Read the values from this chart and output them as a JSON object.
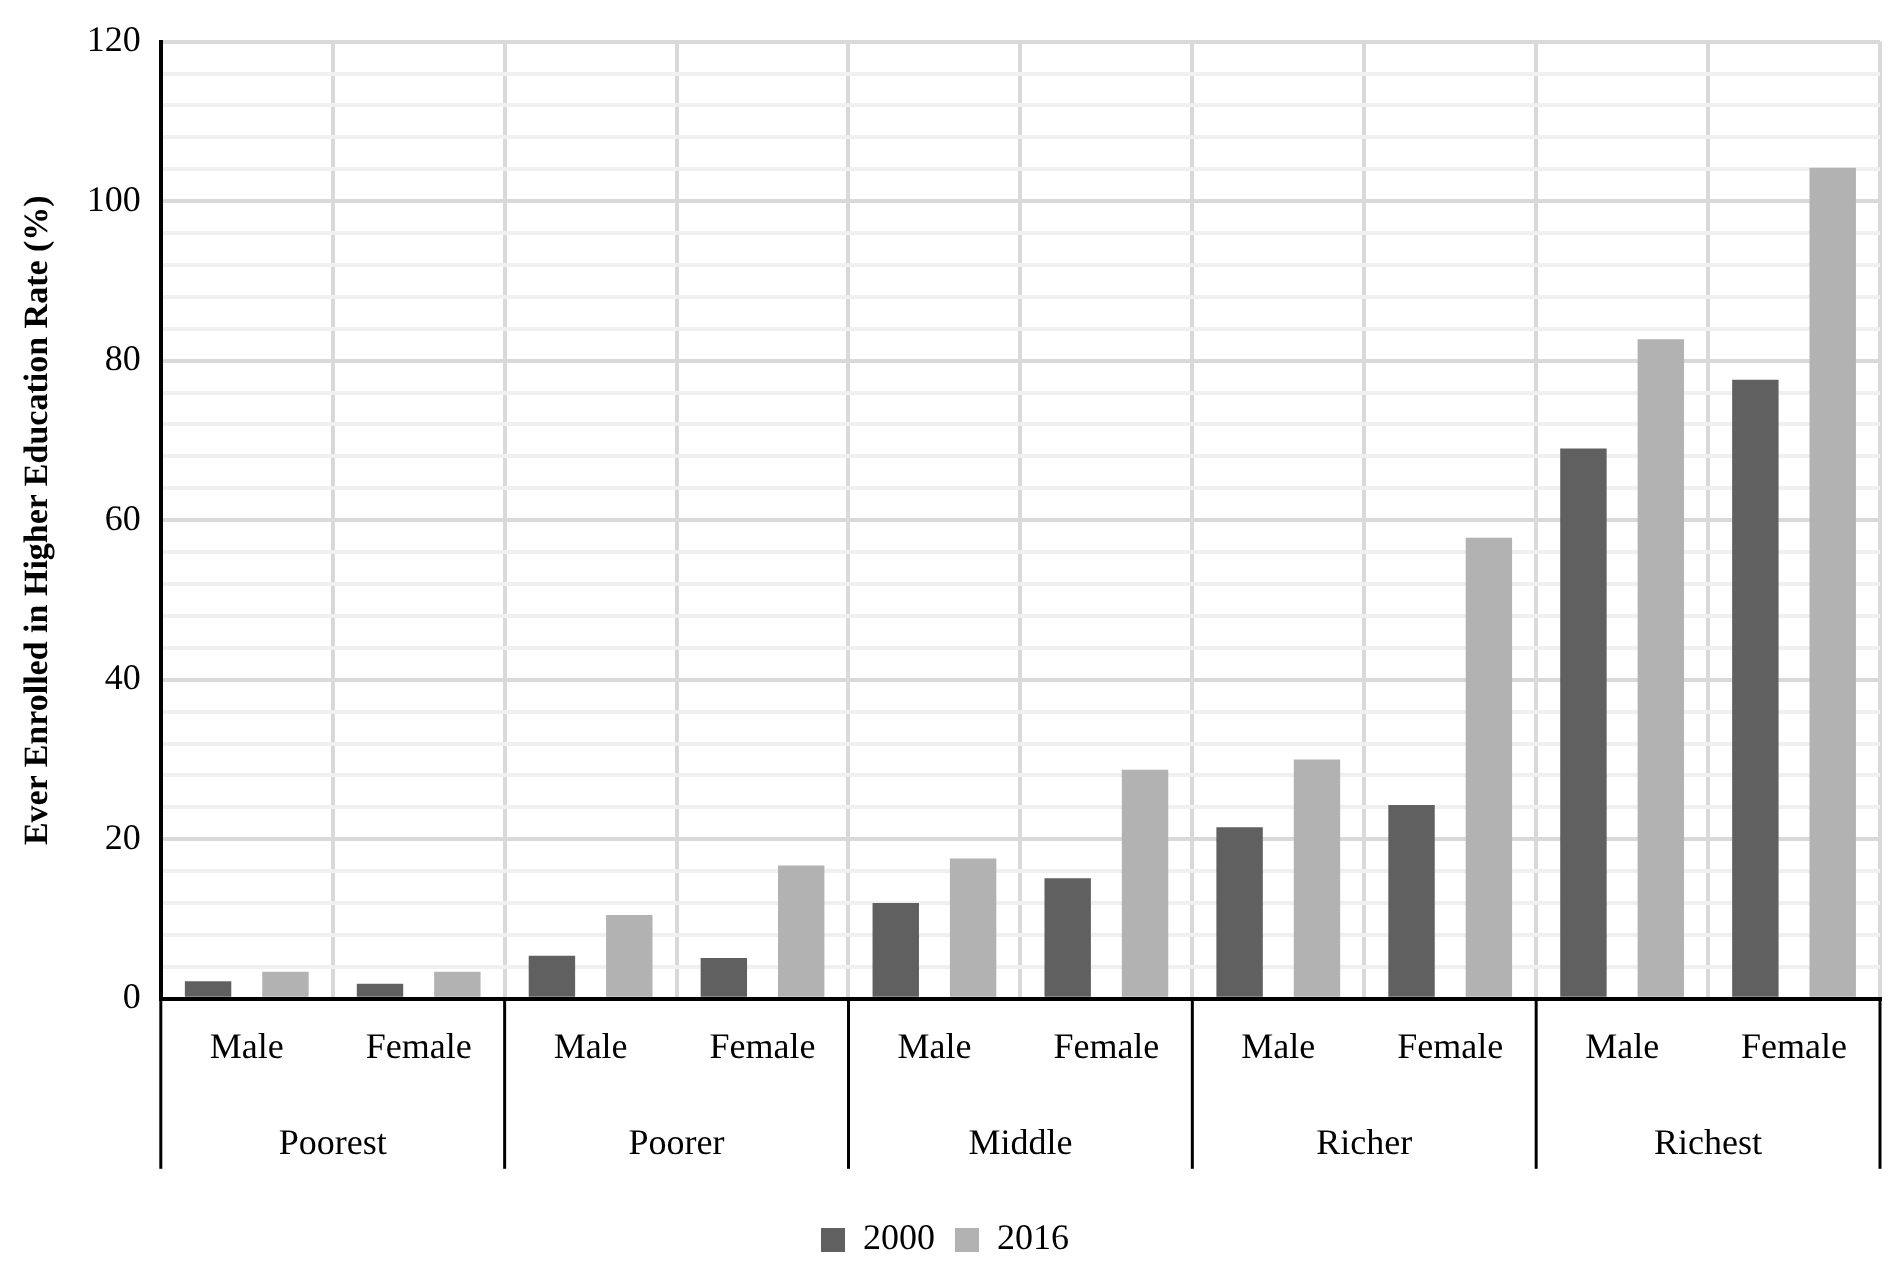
{
  "chart_data": {
    "type": "bar",
    "ylabel": "Ever Enrolled in Higher Education Rate (%)",
    "categories": [
      "Male",
      "Female",
      "Male",
      "Female",
      "Male",
      "Female",
      "Male",
      "Female",
      "Male",
      "Female"
    ],
    "annotations": [
      "Poorest",
      "Poorer",
      "Middle",
      "Richer",
      "Richest"
    ],
    "series": [
      {
        "name": "2000",
        "color": "#606060",
        "values": [
          2.2,
          1.9,
          5.4,
          5.1,
          12,
          15.1,
          21.5,
          24.3,
          69,
          77.6
        ]
      },
      {
        "name": "2016",
        "color": "#b2b2b2",
        "values": [
          3.4,
          3.4,
          10.5,
          16.7,
          17.6,
          28.7,
          30,
          57.8,
          82.7,
          104.2
        ]
      }
    ],
    "ylim": [
      0,
      120
    ],
    "yticks": [
      0,
      {
        "value": 4,
        "label": null
      },
      {
        "value": 8,
        "label": null
      },
      {
        "value": 12,
        "label": null
      },
      {
        "value": 16,
        "label": null
      },
      20,
      {
        "value": 24,
        "label": null
      },
      {
        "value": 28,
        "label": null
      },
      {
        "value": 32,
        "label": null
      },
      {
        "value": 36,
        "label": null
      },
      40,
      {
        "value": 44,
        "label": null
      },
      {
        "value": 48,
        "label": null
      },
      {
        "value": 52,
        "label": null
      },
      {
        "value": 56,
        "label": null
      },
      60,
      {
        "value": 64,
        "label": null
      },
      {
        "value": 68,
        "label": null
      },
      {
        "value": 72,
        "label": null
      },
      {
        "value": 76,
        "label": null
      },
      80,
      {
        "value": 84,
        "label": null
      },
      {
        "value": 88,
        "label": null
      },
      {
        "value": 92,
        "label": null
      },
      {
        "value": 96,
        "label": null
      },
      100,
      {
        "value": 104,
        "label": null
      },
      {
        "value": 108,
        "label": null
      },
      {
        "value": 112,
        "label": null
      },
      {
        "value": 116,
        "label": null
      },
      120
    ],
    "grid": true,
    "legend": "bottom"
  }
}
